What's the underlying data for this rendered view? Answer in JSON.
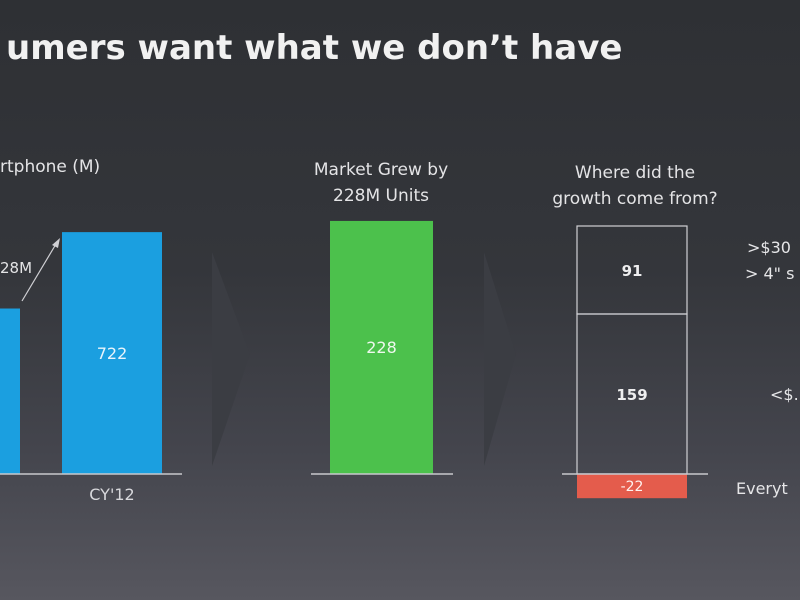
{
  "slide": {
    "title": "umers want what we don’t have",
    "heading_left": "rtphone (M)",
    "heading_mid": [
      "Market Grew by",
      "228M Units"
    ],
    "heading_right": [
      "Where did the",
      "growth come from?"
    ],
    "side_labels": [
      ">$30",
      "> 4\" s",
      "<$.",
      "Everyt"
    ]
  },
  "colors": {
    "blue": "#1b9fe0",
    "green": "#4cc14c",
    "red": "#e45c4c",
    "axis": "#c8c8cc",
    "arrow": "#3b3d43",
    "outline": "#d0d0d4"
  },
  "chart_data": [
    {
      "type": "bar",
      "categories": [
        "",
        "CY'12"
      ],
      "values": [
        494,
        722
      ],
      "data_labels": [
        "",
        "722"
      ],
      "annotation": "28M",
      "ylabel": "rtphone (M)"
    },
    {
      "type": "bar",
      "categories": [
        ""
      ],
      "values": [
        228
      ],
      "data_labels": [
        "228"
      ],
      "title": "Market Grew by 228M Units"
    },
    {
      "type": "bar",
      "stacked": true,
      "title": "Where did the growth come from?",
      "series": [
        {
          "name": ">$30 > 4\" s",
          "values": [
            91
          ]
        },
        {
          "name": "<$.",
          "values": [
            159
          ]
        },
        {
          "name": "Everyt",
          "values": [
            -22
          ]
        }
      ],
      "data_labels": [
        "91",
        "159",
        "-22"
      ]
    }
  ]
}
